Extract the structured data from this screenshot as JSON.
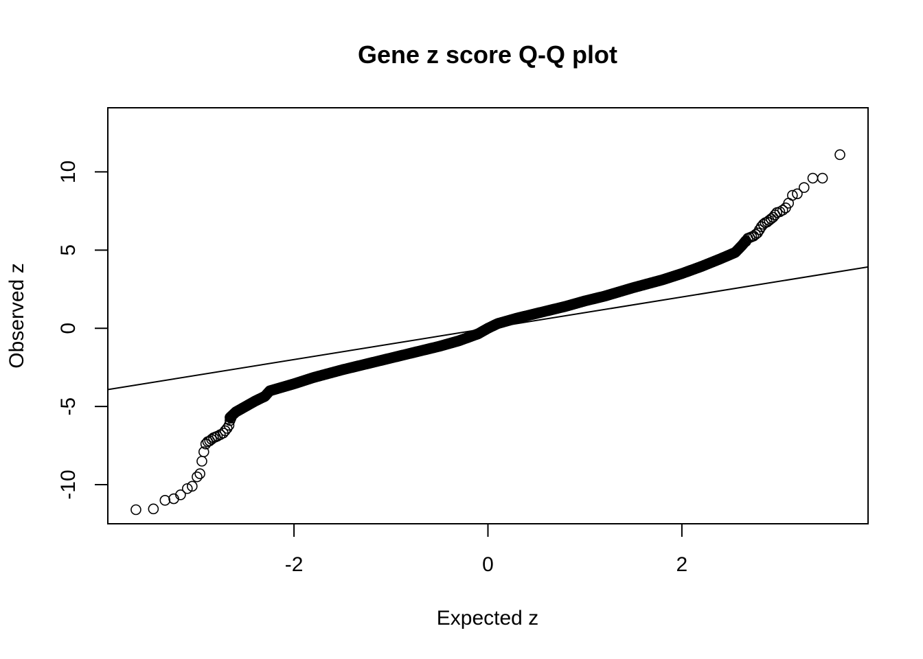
{
  "chart_data": {
    "type": "scatter",
    "title": "Gene z score Q-Q plot",
    "xlabel": "Expected z",
    "ylabel": "Observed z",
    "xlim": [
      -3.92,
      3.92
    ],
    "ylim": [
      -12.5,
      14.1
    ],
    "xticks": [
      -2,
      0,
      2
    ],
    "yticks": [
      -10,
      -5,
      0,
      5,
      10
    ],
    "xtick_labels": [
      "-2",
      "0",
      "2"
    ],
    "ytick_labels": [
      "-10",
      "-5",
      "0",
      "5",
      "10"
    ],
    "reference_line": {
      "slope": 1,
      "intercept": 0
    },
    "grid": false,
    "legend": "none",
    "marker": "open-circle",
    "colors": {
      "points": "#000000",
      "line": "#000000",
      "axes": "#000000"
    },
    "quantile_curve": [
      [
        -2.66,
        -5.7
      ],
      [
        -2.6,
        -5.35
      ],
      [
        -2.5,
        -5.0
      ],
      [
        -2.4,
        -4.65
      ],
      [
        -2.3,
        -4.35
      ],
      [
        -2.25,
        -4.0
      ],
      [
        -2.0,
        -3.55
      ],
      [
        -1.8,
        -3.15
      ],
      [
        -1.5,
        -2.65
      ],
      [
        -1.2,
        -2.2
      ],
      [
        -1.0,
        -1.9
      ],
      [
        -0.8,
        -1.6
      ],
      [
        -0.5,
        -1.15
      ],
      [
        -0.3,
        -0.8
      ],
      [
        -0.1,
        -0.35
      ],
      [
        0.0,
        0.0
      ],
      [
        0.1,
        0.3
      ],
      [
        0.3,
        0.65
      ],
      [
        0.5,
        0.95
      ],
      [
        0.8,
        1.4
      ],
      [
        1.0,
        1.75
      ],
      [
        1.2,
        2.05
      ],
      [
        1.5,
        2.6
      ],
      [
        1.8,
        3.1
      ],
      [
        2.0,
        3.5
      ],
      [
        2.2,
        3.95
      ],
      [
        2.4,
        4.45
      ],
      [
        2.55,
        4.85
      ],
      [
        2.62,
        5.3
      ],
      [
        2.66,
        5.6
      ]
    ],
    "tail_points": [
      [
        -3.63,
        -11.6
      ],
      [
        -3.45,
        -11.55
      ],
      [
        -3.33,
        -11.0
      ],
      [
        -3.24,
        -10.9
      ],
      [
        -3.17,
        -10.65
      ],
      [
        -3.1,
        -10.25
      ],
      [
        -3.05,
        -10.1
      ],
      [
        -3.0,
        -9.5
      ],
      [
        -2.97,
        -9.3
      ],
      [
        -2.95,
        -8.5
      ],
      [
        -2.93,
        -7.9
      ],
      [
        -2.91,
        -7.4
      ],
      [
        -2.89,
        -7.25
      ],
      [
        -2.87,
        -7.2
      ],
      [
        -2.85,
        -7.1
      ],
      [
        -2.83,
        -7.0
      ],
      [
        -2.81,
        -6.95
      ],
      [
        -2.79,
        -6.9
      ],
      [
        -2.76,
        -6.8
      ],
      [
        -2.73,
        -6.7
      ],
      [
        -2.71,
        -6.55
      ],
      [
        -2.69,
        -6.4
      ],
      [
        -2.67,
        -6.2
      ],
      [
        -2.66,
        -5.9
      ],
      [
        -2.65,
        -5.75
      ],
      [
        2.66,
        5.55
      ],
      [
        2.68,
        5.75
      ],
      [
        2.7,
        5.8
      ],
      [
        2.72,
        5.85
      ],
      [
        2.74,
        5.9
      ],
      [
        2.76,
        6.0
      ],
      [
        2.78,
        6.1
      ],
      [
        2.8,
        6.3
      ],
      [
        2.82,
        6.5
      ],
      [
        2.84,
        6.65
      ],
      [
        2.86,
        6.75
      ],
      [
        2.88,
        6.8
      ],
      [
        2.9,
        6.9
      ],
      [
        2.92,
        7.0
      ],
      [
        2.94,
        7.1
      ],
      [
        2.96,
        7.25
      ],
      [
        2.98,
        7.4
      ],
      [
        3.01,
        7.45
      ],
      [
        3.04,
        7.55
      ],
      [
        3.07,
        7.7
      ],
      [
        3.1,
        8.0
      ],
      [
        3.14,
        8.5
      ],
      [
        3.19,
        8.6
      ],
      [
        3.26,
        9.0
      ],
      [
        3.35,
        9.6
      ],
      [
        3.45,
        9.6
      ],
      [
        3.63,
        11.1
      ]
    ]
  }
}
